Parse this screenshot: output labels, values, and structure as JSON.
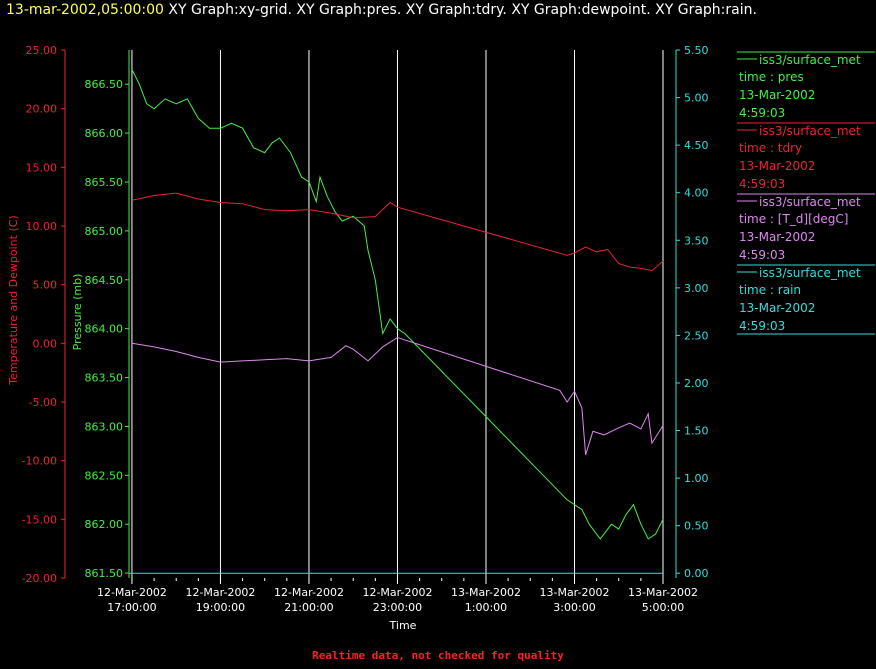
{
  "header": {
    "timestamp": "13-mar-2002,05:00:00",
    "description": "XY Graph:xy-grid.  XY Graph:pres.  XY Graph:tdry.  XY Graph:dewpoint.  XY Graph:rain."
  },
  "footer": {
    "note": "Realtime data, not checked for quality"
  },
  "colors": {
    "pres": "#44ee44",
    "tdry": "#ee2233",
    "dewpoint": "#dd88ee",
    "rain": "#33dddd",
    "grid": "#ffffff",
    "left_axis": "#ee2233"
  },
  "chart_data": {
    "type": "line",
    "xlabel": "Time",
    "x_ticks": [
      {
        "date": "12-Mar-2002",
        "time": "17:00:00"
      },
      {
        "date": "12-Mar-2002",
        "time": "19:00:00"
      },
      {
        "date": "12-Mar-2002",
        "time": "21:00:00"
      },
      {
        "date": "12-Mar-2002",
        "time": "23:00:00"
      },
      {
        "date": "13-Mar-2002",
        "time": "1:00:00"
      },
      {
        "date": "13-Mar-2002",
        "time": "3:00:00"
      },
      {
        "date": "13-Mar-2002",
        "time": "5:00:00"
      }
    ],
    "xlim": [
      "2002-03-12 16:56",
      "2002-03-13 05:00"
    ],
    "grid": "vertical",
    "axes": {
      "temperature": {
        "label": "Temperature and Dewpoint (C)",
        "ylim": [
          -20,
          25
        ],
        "ticks": [
          "-20.00",
          "-15.00",
          "-10.00",
          "-5.00",
          "0.00",
          "5.00",
          "10.00",
          "15.00",
          "20.00",
          "25.00"
        ]
      },
      "pressure": {
        "label": "Pressure (mb)",
        "ylim": [
          861.45,
          866.85
        ],
        "ticks": [
          "861.50",
          "862.00",
          "862.50",
          "863.00",
          "863.50",
          "864.00",
          "864.50",
          "865.00",
          "865.50",
          "866.00",
          "866.50"
        ]
      },
      "rain": {
        "label": "",
        "ylim": [
          -0.05,
          5.5
        ],
        "ticks": [
          "0.00",
          "0.50",
          "1.00",
          "1.50",
          "2.00",
          "2.50",
          "3.00",
          "3.50",
          "4.00",
          "4.50",
          "5.00",
          "5.50"
        ]
      }
    },
    "series": [
      {
        "key": "pres",
        "axis": "pressure",
        "points": [
          [
            "2002-03-12 17:00",
            866.65
          ],
          [
            "2002-03-12 17:10",
            866.5
          ],
          [
            "2002-03-12 17:20",
            866.3
          ],
          [
            "2002-03-12 17:30",
            866.25
          ],
          [
            "2002-03-12 17:45",
            866.35
          ],
          [
            "2002-03-12 18:00",
            866.3
          ],
          [
            "2002-03-12 18:15",
            866.35
          ],
          [
            "2002-03-12 18:30",
            866.15
          ],
          [
            "2002-03-12 18:45",
            866.05
          ],
          [
            "2002-03-12 19:00",
            866.05
          ],
          [
            "2002-03-12 19:15",
            866.1
          ],
          [
            "2002-03-12 19:30",
            866.05
          ],
          [
            "2002-03-12 19:45",
            865.85
          ],
          [
            "2002-03-12 20:00",
            865.8
          ],
          [
            "2002-03-12 20:10",
            865.9
          ],
          [
            "2002-03-12 20:20",
            865.95
          ],
          [
            "2002-03-12 20:35",
            865.8
          ],
          [
            "2002-03-12 20:50",
            865.55
          ],
          [
            "2002-03-12 21:00",
            865.5
          ],
          [
            "2002-03-12 21:10",
            865.3
          ],
          [
            "2002-03-12 21:15",
            865.55
          ],
          [
            "2002-03-12 21:25",
            865.35
          ],
          [
            "2002-03-12 21:35",
            865.2
          ],
          [
            "2002-03-12 21:45",
            865.1
          ],
          [
            "2002-03-12 22:00",
            865.15
          ],
          [
            "2002-03-12 22:15",
            865.05
          ],
          [
            "2002-03-12 22:20",
            864.8
          ],
          [
            "2002-03-12 22:30",
            864.5
          ],
          [
            "2002-03-12 22:40",
            863.95
          ],
          [
            "2002-03-12 22:50",
            864.1
          ],
          [
            "2002-03-12 23:00",
            864.0
          ],
          [
            "2002-03-12 23:10",
            863.95
          ],
          [
            "2002-03-13 02:50",
            862.25
          ],
          [
            "2002-03-13 03:00",
            862.2
          ],
          [
            "2002-03-13 03:10",
            862.15
          ],
          [
            "2002-03-13 03:20",
            862.0
          ],
          [
            "2002-03-13 03:35",
            861.85
          ],
          [
            "2002-03-13 03:50",
            862.0
          ],
          [
            "2002-03-13 04:00",
            861.95
          ],
          [
            "2002-03-13 04:10",
            862.1
          ],
          [
            "2002-03-13 04:20",
            862.2
          ],
          [
            "2002-03-13 04:30",
            862.0
          ],
          [
            "2002-03-13 04:40",
            861.85
          ],
          [
            "2002-03-13 04:50",
            861.9
          ],
          [
            "2002-03-13 05:00",
            862.05
          ]
        ]
      },
      {
        "key": "tdry",
        "axis": "temperature",
        "points": [
          [
            "2002-03-12 17:00",
            12.2
          ],
          [
            "2002-03-12 17:30",
            12.6
          ],
          [
            "2002-03-12 18:00",
            12.8
          ],
          [
            "2002-03-12 18:30",
            12.3
          ],
          [
            "2002-03-12 19:00",
            12.0
          ],
          [
            "2002-03-12 19:30",
            11.9
          ],
          [
            "2002-03-12 20:00",
            11.4
          ],
          [
            "2002-03-12 20:30",
            11.3
          ],
          [
            "2002-03-12 21:00",
            11.4
          ],
          [
            "2002-03-12 21:30",
            11.1
          ],
          [
            "2002-03-12 22:00",
            10.7
          ],
          [
            "2002-03-12 22:30",
            10.8
          ],
          [
            "2002-03-12 22:50",
            12.0
          ],
          [
            "2002-03-12 23:00",
            11.6
          ],
          [
            "2002-03-13 02:50",
            7.5
          ],
          [
            "2002-03-13 03:00",
            7.7
          ],
          [
            "2002-03-13 03:15",
            8.2
          ],
          [
            "2002-03-13 03:30",
            7.8
          ],
          [
            "2002-03-13 03:45",
            8.0
          ],
          [
            "2002-03-13 04:00",
            6.8
          ],
          [
            "2002-03-13 04:15",
            6.5
          ],
          [
            "2002-03-13 04:30",
            6.4
          ],
          [
            "2002-03-13 04:45",
            6.2
          ],
          [
            "2002-03-13 05:00",
            7.0
          ]
        ]
      },
      {
        "key": "dewpoint",
        "axis": "temperature",
        "points": [
          [
            "2002-03-12 17:00",
            0.0
          ],
          [
            "2002-03-12 17:30",
            -0.3
          ],
          [
            "2002-03-12 18:00",
            -0.7
          ],
          [
            "2002-03-12 18:30",
            -1.2
          ],
          [
            "2002-03-12 19:00",
            -1.6
          ],
          [
            "2002-03-12 19:30",
            -1.5
          ],
          [
            "2002-03-12 20:00",
            -1.4
          ],
          [
            "2002-03-12 20:30",
            -1.3
          ],
          [
            "2002-03-12 21:00",
            -1.5
          ],
          [
            "2002-03-12 21:30",
            -1.2
          ],
          [
            "2002-03-12 21:50",
            -0.2
          ],
          [
            "2002-03-12 22:00",
            -0.5
          ],
          [
            "2002-03-12 22:20",
            -1.5
          ],
          [
            "2002-03-12 22:40",
            -0.3
          ],
          [
            "2002-03-12 23:00",
            0.5
          ],
          [
            "2002-03-13 02:40",
            -4.0
          ],
          [
            "2002-03-13 02:50",
            -5.0
          ],
          [
            "2002-03-13 03:00",
            -4.1
          ],
          [
            "2002-03-13 03:10",
            -5.5
          ],
          [
            "2002-03-13 03:15",
            -9.5
          ],
          [
            "2002-03-13 03:25",
            -7.5
          ],
          [
            "2002-03-13 03:40",
            -7.8
          ],
          [
            "2002-03-13 04:00",
            -7.2
          ],
          [
            "2002-03-13 04:15",
            -6.8
          ],
          [
            "2002-03-13 04:30",
            -7.3
          ],
          [
            "2002-03-13 04:40",
            -6.0
          ],
          [
            "2002-03-13 04:45",
            -8.5
          ],
          [
            "2002-03-13 05:00",
            -7.0
          ]
        ]
      },
      {
        "key": "rain",
        "axis": "rain",
        "points": [
          [
            "2002-03-12 16:56",
            0.0
          ],
          [
            "2002-03-13 05:00",
            0.0
          ]
        ]
      }
    ],
    "legend": {
      "placement": "right",
      "entries": [
        {
          "key": "pres",
          "source": "iss3/surface_met",
          "field": "time : pres",
          "date": "13-Mar-2002",
          "time": "4:59:03"
        },
        {
          "key": "tdry",
          "source": "iss3/surface_met",
          "field": "time : tdry",
          "date": "13-Mar-2002",
          "time": "4:59:03"
        },
        {
          "key": "dewpoint",
          "source": "iss3/surface_met",
          "field": "time : [T_d][degC]",
          "date": "13-Mar-2002",
          "time": "4:59:03"
        },
        {
          "key": "rain",
          "source": "iss3/surface_met",
          "field": "time : rain",
          "date": "13-Mar-2002",
          "time": "4:59:03"
        }
      ]
    }
  }
}
